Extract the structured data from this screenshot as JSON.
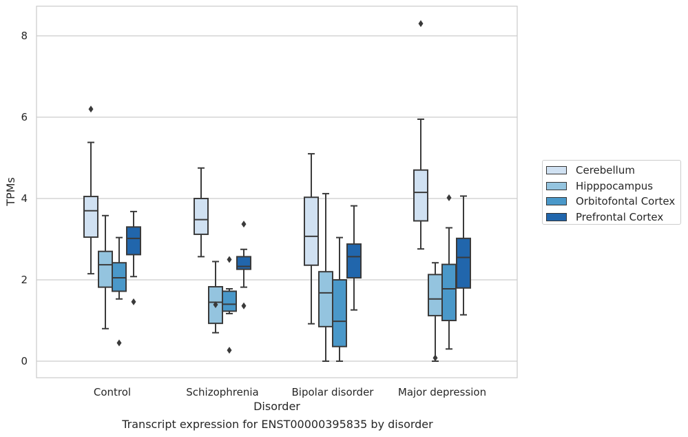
{
  "caption": "Transcript expression for ENST00000395835 by disorder",
  "chart_data": {
    "type": "box",
    "xlabel": "Disorder",
    "ylabel": "TPMs",
    "ylim": [
      -0.4,
      8.75
    ],
    "yticks": [
      0,
      2,
      4,
      6,
      8
    ],
    "grid": true,
    "legend_position": "right",
    "categories": [
      "Control",
      "Schizophrenia",
      "Bipolar disorder",
      "Major depression"
    ],
    "series": [
      {
        "name": "Cerebellum",
        "color": "#d0e1f2",
        "boxes": [
          {
            "whisker_low": 2.15,
            "q1": 3.05,
            "median": 3.7,
            "q3": 4.05,
            "whisker_high": 5.38,
            "outliers": [
              6.2
            ]
          },
          {
            "whisker_low": 2.57,
            "q1": 3.12,
            "median": 3.48,
            "q3": 4.0,
            "whisker_high": 4.75,
            "outliers": []
          },
          {
            "whisker_low": 0.92,
            "q1": 2.36,
            "median": 3.07,
            "q3": 4.03,
            "whisker_high": 5.1,
            "outliers": []
          },
          {
            "whisker_low": 2.76,
            "q1": 3.45,
            "median": 4.15,
            "q3": 4.7,
            "whisker_high": 5.95,
            "outliers": [
              8.3
            ]
          }
        ]
      },
      {
        "name": "Hipppocampus",
        "color": "#94c4df",
        "boxes": [
          {
            "whisker_low": 0.8,
            "q1": 1.82,
            "median": 2.37,
            "q3": 2.7,
            "whisker_high": 3.58,
            "outliers": []
          },
          {
            "whisker_low": 0.7,
            "q1": 0.93,
            "median": 1.45,
            "q3": 1.83,
            "whisker_high": 2.45,
            "outliers": [
              1.39
            ]
          },
          {
            "whisker_low": 0.0,
            "q1": 0.85,
            "median": 1.68,
            "q3": 2.2,
            "whisker_high": 4.12,
            "outliers": []
          },
          {
            "whisker_low": 0.0,
            "q1": 1.12,
            "median": 1.53,
            "q3": 2.13,
            "whisker_high": 2.42,
            "outliers": [
              0.08
            ]
          }
        ]
      },
      {
        "name": "Orbitofontal Cortex",
        "color": "#4a98c9",
        "boxes": [
          {
            "whisker_low": 1.53,
            "q1": 1.72,
            "median": 2.05,
            "q3": 2.42,
            "whisker_high": 3.04,
            "outliers": [
              0.45
            ]
          },
          {
            "whisker_low": 1.17,
            "q1": 1.23,
            "median": 1.4,
            "q3": 1.72,
            "whisker_high": 1.78,
            "outliers": [
              2.5,
              0.27
            ]
          },
          {
            "whisker_low": 0.0,
            "q1": 0.36,
            "median": 0.98,
            "q3": 2.0,
            "whisker_high": 3.04,
            "outliers": []
          },
          {
            "whisker_low": 0.3,
            "q1": 1.0,
            "median": 1.78,
            "q3": 2.38,
            "whisker_high": 3.28,
            "outliers": [
              4.02
            ]
          }
        ]
      },
      {
        "name": "Prefrontal Cortex",
        "color": "#2166ac",
        "boxes": [
          {
            "whisker_low": 2.08,
            "q1": 2.62,
            "median": 3.02,
            "q3": 3.3,
            "whisker_high": 3.68,
            "outliers": [
              1.46
            ]
          },
          {
            "whisker_low": 1.82,
            "q1": 2.26,
            "median": 2.33,
            "q3": 2.57,
            "whisker_high": 2.75,
            "outliers": [
              3.37,
              1.36
            ]
          },
          {
            "whisker_low": 1.26,
            "q1": 2.05,
            "median": 2.57,
            "q3": 2.88,
            "whisker_high": 3.82,
            "outliers": []
          },
          {
            "whisker_low": 1.14,
            "q1": 1.8,
            "median": 2.55,
            "q3": 3.02,
            "whisker_high": 4.06,
            "outliers": []
          }
        ]
      }
    ]
  }
}
